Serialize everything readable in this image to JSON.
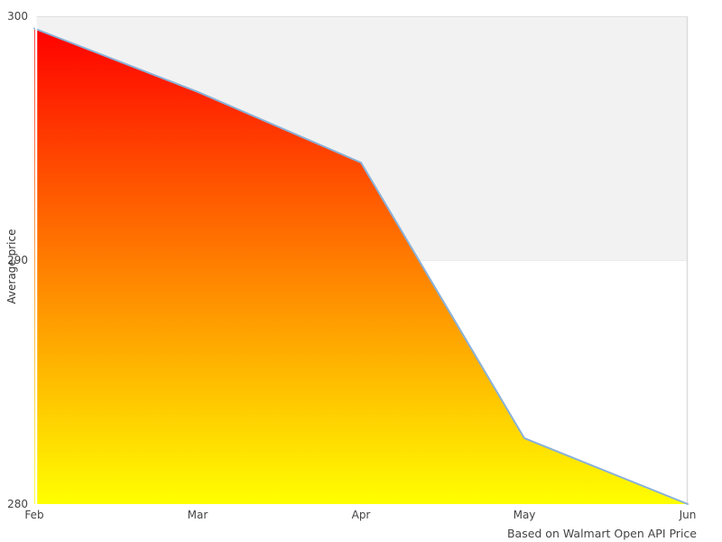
{
  "chart_data": {
    "type": "area",
    "x": [
      "Feb",
      "Mar",
      "Apr",
      "May",
      "Jun"
    ],
    "values": [
      299.5,
      296.9,
      294.0,
      282.7,
      280.0
    ],
    "title": "",
    "xlabel": "",
    "ylabel": "Average price",
    "caption": "Based on Walmart Open API Price",
    "ylim": [
      280,
      300
    ],
    "yticks": [
      280,
      290,
      300
    ],
    "legend": "none",
    "grid": "alternate-horizontal-band",
    "band": {
      "from": 290,
      "to": 300
    },
    "colors": {
      "line": "#8ab1d8",
      "fill_top": "#ff0000",
      "fill_bottom": "#ffff00",
      "band_fill": "#f2f2f2",
      "band_top_border": "#e0e0e0",
      "plot_right_border": "#dcdcdc",
      "band_bottom_border": "#ececec",
      "tick_text": "#444444",
      "background": "#ffffff"
    }
  }
}
